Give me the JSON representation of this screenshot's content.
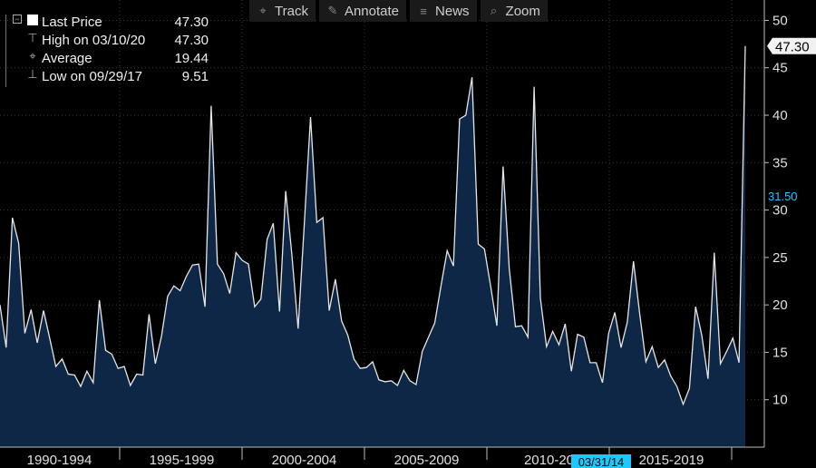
{
  "toolbar": {
    "items": [
      {
        "label": "Track",
        "icon": "crosshair-icon",
        "glyph": "⌖"
      },
      {
        "label": "Annotate",
        "icon": "pencil-icon",
        "glyph": "✎"
      },
      {
        "label": "News",
        "icon": "news-icon",
        "glyph": "≡"
      },
      {
        "label": "Zoom",
        "icon": "zoom-icon",
        "glyph": "⌕"
      }
    ]
  },
  "legend": {
    "rows": [
      {
        "label": "Last Price",
        "value": "47.30"
      },
      {
        "label": "High on 03/10/20",
        "value": "47.30"
      },
      {
        "label": "Average",
        "value": "19.44"
      },
      {
        "label": "Low on 09/29/17",
        "value": "9.51"
      }
    ]
  },
  "chart_data": {
    "type": "area",
    "title": "",
    "xlabel": "",
    "ylabel": "",
    "ylim": [
      5,
      51
    ],
    "y_ticks": [
      10,
      15,
      20,
      25,
      30,
      35,
      40,
      45,
      50
    ],
    "x_tick_labels": [
      "1990-1994",
      "1995-1999",
      "2000-2004",
      "2005-2009",
      "2010-20",
      "2015-2019"
    ],
    "grid": true,
    "colors": {
      "line": "#e6e6e6",
      "fill": "#0e2746",
      "grid": "#3a3a3a",
      "background": "#000000",
      "tag_bg": "#1ec8ff"
    },
    "series": [
      {
        "values": [
          20,
          15.5,
          29.2,
          26.5,
          17,
          19.5,
          16,
          19.4,
          16.5,
          13.5,
          14.3,
          12.7,
          12.6,
          11.4,
          13,
          11.8,
          20.5,
          15.2,
          14.8,
          13.3,
          13.5,
          11.5,
          12.7,
          12.6,
          19,
          13.8,
          16.7,
          20.9,
          22,
          21.5,
          23,
          24.2,
          24.3,
          19.8,
          41,
          24.3,
          23.3,
          21.2,
          25.5,
          24.7,
          24.3,
          19.8,
          20.6,
          26.9,
          28.6,
          19.3,
          32,
          25.3,
          17.5,
          28.5,
          39.8,
          28.7,
          29.2,
          19.4,
          22.7,
          18.3,
          16.8,
          14.3,
          13.3,
          13.4,
          14,
          12.1,
          11.9,
          12,
          11.5,
          13.1,
          12,
          11.6,
          15.1,
          16.6,
          18.1,
          22,
          25.7,
          24.1,
          39.6,
          40,
          44,
          26.4,
          25.9,
          22,
          17.8,
          34.6,
          23.8,
          17.7,
          17.8,
          16.6,
          43,
          20.7,
          15.6,
          17.2,
          15.8,
          18,
          13,
          16.9,
          16.6,
          13.9,
          13.9,
          11.8,
          17,
          19.2,
          15.5,
          18.2,
          24.6,
          19.1,
          14,
          15.6,
          13.4,
          14.2,
          12.5,
          11.4,
          9.51,
          11.2,
          19.8,
          16.8,
          12.2,
          25.5,
          13.8,
          15.1,
          16.5,
          13.9,
          47.3
        ]
      }
    ],
    "annotations": {
      "last_value": "47.30",
      "marker_value": "31.50",
      "date_tag": "03/31/14"
    }
  }
}
